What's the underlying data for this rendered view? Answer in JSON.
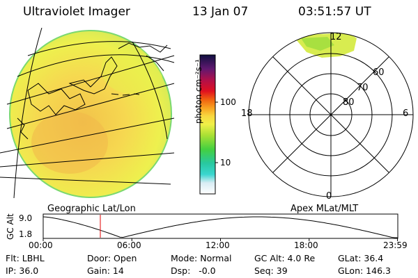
{
  "header": {
    "title": "Ultraviolet Imager",
    "date": "13 Jan 07",
    "time": "03:51:57 UT"
  },
  "colorbar": {
    "unit_label": "photon cm⁻²s⁻¹",
    "ticks": [
      "100",
      "10"
    ],
    "tick_values": [
      100,
      10
    ],
    "range": [
      2,
      600
    ]
  },
  "polar_plot": {
    "mlt_labels": {
      "top": "12",
      "bottom": "0",
      "left": "18",
      "right": "6"
    },
    "lat_labels": [
      "60",
      "70",
      "80"
    ],
    "lat_values": [
      60,
      70,
      80
    ]
  },
  "map_titles": {
    "left": "Geographic Lat/Lon",
    "right": "Apex MLat/MLT"
  },
  "orbit_plot": {
    "y_axis_label": "GC Alt",
    "y_ticks": [
      "9.0",
      "1.8"
    ],
    "y_tick_values": [
      9.0,
      1.8
    ],
    "x_ticks": [
      "00:00",
      "06:00",
      "12:00",
      "18:00",
      "23:59"
    ],
    "x_tick_hours": [
      0,
      6,
      12,
      18,
      23.98
    ],
    "current_time_hours": 3.866,
    "curve_color": "#000000",
    "marker_color": "#e00000"
  },
  "status": {
    "flt": "Flt: LBHL",
    "door": "Door: Open",
    "mode": "Mode: Normal",
    "gc_alt": "GC Alt: 4.0 Re",
    "glat": "GLat: 36.4",
    "ip": "IP: 36.0",
    "gain": "Gain: 14",
    "dsp": "Dsp:   -0.0",
    "seq": "Seq: 39",
    "glon": "GLon: 146.3"
  }
}
